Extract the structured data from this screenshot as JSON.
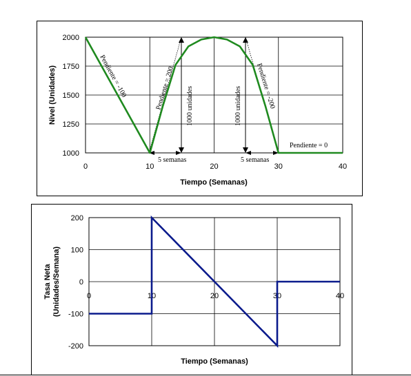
{
  "chart_data": [
    {
      "type": "line",
      "xlabel": "Tiempo (Semanas)",
      "ylabel": "Nivel (Unidades)",
      "xlim": [
        0,
        40
      ],
      "ylim": [
        1000,
        2000
      ],
      "xticks": [
        "0",
        "10",
        "20",
        "30",
        "40"
      ],
      "yticks": [
        "1000",
        "1250",
        "1500",
        "1750",
        "2000"
      ],
      "grid": true,
      "color": "#1f8a1f",
      "series": [
        {
          "x": [
            0,
            10,
            12,
            14,
            16,
            18,
            20,
            22,
            24,
            26,
            28,
            30,
            40
          ],
          "values": [
            2000,
            1000,
            1400,
            1760,
            1920,
            1980,
            2000,
            1980,
            1920,
            1760,
            1400,
            1000,
            1000
          ]
        }
      ],
      "annotations": {
        "slope1": "Pendiente = -100",
        "slope2": "Pendiente = 200",
        "slope3": "Pendiente = -200",
        "slope4": "Pendiente = 0",
        "units1": "1000 unidades",
        "units2": "1000 unidades",
        "weeks1": "5 semanas",
        "weeks2": "5 semanas"
      }
    },
    {
      "type": "line",
      "xlabel": "Tiempo (Semanas)",
      "ylabel_line1": "Tasa Neta",
      "ylabel_line2": "(Unidades/Semana)",
      "xlim": [
        0,
        40
      ],
      "ylim": [
        -200,
        200
      ],
      "xticks": [
        "0",
        "10",
        "20",
        "30",
        "40"
      ],
      "yticks": [
        "-200",
        "-100",
        "0",
        "100",
        "200"
      ],
      "grid": true,
      "color": "#0a1a8c",
      "series": [
        {
          "x": [
            0,
            10,
            10,
            30,
            30,
            40
          ],
          "values": [
            -100,
            -100,
            200,
            -200,
            0,
            0
          ]
        }
      ]
    }
  ]
}
